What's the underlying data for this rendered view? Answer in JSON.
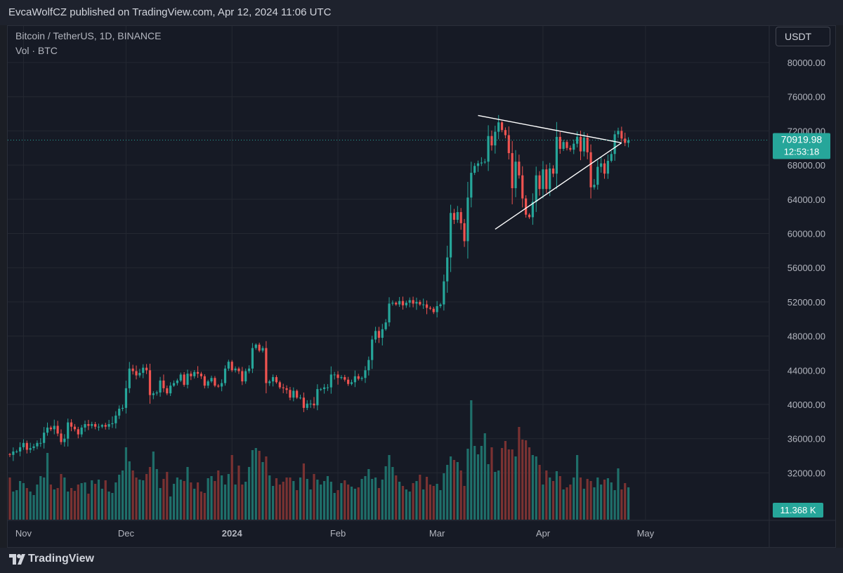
{
  "header": {
    "publish_text": "EvcaWolfCZ published on TradingView.com, Apr 12, 2024 11:06 UTC"
  },
  "chart": {
    "symbol_text": "Bitcoin / TetherUS, 1D, BINANCE",
    "volume_label": "Vol · BTC",
    "currency_button": "USDT",
    "last_price_label": "70919.98",
    "countdown_label": "12:53:18",
    "volume_value_label": "11.368 K"
  },
  "footer": {
    "brand": "TradingView",
    "brand_icon": "tradingview-logo-icon"
  },
  "colors": {
    "up": "#26a69a",
    "down": "#ef5350",
    "up_volume": "#1f6f6a",
    "down_volume": "#7a3232",
    "pattern_lines": "#ffffff",
    "price_line": "#26a69a"
  },
  "chart_data": {
    "type": "candlestick",
    "title": "Bitcoin / TetherUS, 1D, BINANCE",
    "ylim": [
      30000,
      82000
    ],
    "y_ticks": [
      "80000.00",
      "76000.00",
      "72000.00",
      "68000.00",
      "64000.00",
      "60000.00",
      "56000.00",
      "52000.00",
      "48000.00",
      "44000.00",
      "40000.00",
      "36000.00",
      "32000.00"
    ],
    "x_ticks": [
      {
        "label": "Nov",
        "date": "2023-11-01"
      },
      {
        "label": "Dec",
        "date": "2023-12-01"
      },
      {
        "label": "2024",
        "date": "2024-01-01"
      },
      {
        "label": "Feb",
        "date": "2024-02-01"
      },
      {
        "label": "Mar",
        "date": "2024-03-01"
      },
      {
        "label": "Apr",
        "date": "2024-04-01"
      },
      {
        "label": "May",
        "date": "2024-05-01"
      }
    ],
    "start_date": "2023-10-28",
    "close": [
      34100,
      34500,
      34500,
      35000,
      35500,
      34700,
      34900,
      35100,
      35500,
      35500,
      36700,
      37300,
      37100,
      37500,
      36600,
      35600,
      36000,
      37900,
      37400,
      37100,
      36500,
      37300,
      37700,
      37500,
      37700,
      37400,
      37400,
      37600,
      37400,
      37700,
      37800,
      38700,
      39500,
      39600,
      41900,
      44200,
      43900,
      43400,
      43700,
      44300,
      44000,
      41100,
      41300,
      41400,
      42800,
      41900,
      41300,
      42200,
      42500,
      42800,
      43500,
      42300,
      43600,
      43300,
      43800,
      43600,
      43300,
      42200,
      42700,
      43100,
      42200,
      42100,
      42500,
      44200,
      45000,
      44000,
      44200,
      43900,
      42700,
      43900,
      44200,
      46600,
      47000,
      46300,
      46600,
      42500,
      42700,
      43200,
      42600,
      42000,
      41900,
      41700,
      40800,
      41600,
      40800,
      40800,
      39600,
      40100,
      40100,
      39900,
      41800,
      41800,
      42000,
      42000,
      43500,
      43500,
      43100,
      43200,
      42900,
      42400,
      42600,
      43300,
      43000,
      43100,
      44000,
      45200,
      47600,
      48600,
      47800,
      48800,
      49600,
      51800,
      51900,
      51700,
      52100,
      51600,
      51900,
      52200,
      51800,
      52000,
      51700,
      51700,
      51300,
      51200,
      50800,
      51500,
      51700,
      54400,
      57200,
      62400,
      61600,
      62500,
      61200,
      59100,
      64200,
      67100,
      67900,
      68200,
      68300,
      68400,
      71400,
      70300,
      71900,
      73000,
      72100,
      71500,
      69400,
      65300,
      68400,
      66800,
      64100,
      62200,
      61900,
      63700,
      66800,
      65200,
      67500,
      65200,
      67600,
      67000,
      71300,
      69900,
      70700,
      70000,
      69800,
      70500,
      71300,
      69600,
      71200,
      69500,
      65400,
      65700,
      67800,
      68200,
      67000,
      68500,
      69300,
      71600,
      72000,
      71100,
      70600,
      70900
    ],
    "volume_index": [
      60,
      40,
      42,
      55,
      52,
      45,
      40,
      35,
      50,
      62,
      60,
      95,
      50,
      43,
      45,
      65,
      60,
      40,
      45,
      41,
      50,
      52,
      53,
      37,
      56,
      51,
      57,
      44,
      56,
      40,
      38,
      53,
      64,
      70,
      103,
      83,
      70,
      60,
      57,
      56,
      65,
      75,
      97,
      72,
      45,
      58,
      68,
      33,
      51,
      60,
      57,
      55,
      75,
      53,
      44,
      53,
      40,
      38,
      59,
      62,
      55,
      70,
      63,
      50,
      65,
      92,
      50,
      77,
      50,
      54,
      75,
      99,
      102,
      98,
      82,
      90,
      63,
      48,
      59,
      50,
      54,
      60,
      60,
      55,
      42,
      60,
      80,
      58,
      43,
      65,
      57,
      50,
      55,
      62,
      54,
      38,
      42,
      52,
      56,
      50,
      47,
      44,
      46,
      58,
      62,
      72,
      58,
      60,
      45,
      57,
      76,
      92,
      75,
      63,
      54,
      48,
      43,
      40,
      52,
      55,
      64,
      43,
      61,
      50,
      48,
      51,
      42,
      66,
      78,
      90,
      85,
      82,
      70,
      48,
      101,
      170,
      105,
      93,
      105,
      123,
      79,
      103,
      68,
      70,
      102,
      112,
      100,
      100,
      90,
      132,
      114,
      113,
      103,
      92,
      90,
      78,
      50,
      70,
      60,
      55,
      69,
      62,
      43,
      46,
      50,
      60,
      92,
      60,
      44,
      58,
      55,
      46,
      60,
      50,
      57,
      59,
      53,
      42,
      73,
      43,
      52,
      46
    ],
    "pattern": {
      "type": "symmetrical triangle",
      "upper_line": [
        {
          "date": "2024-03-13",
          "price": 73800
        },
        {
          "date": "2024-04-24",
          "price": 70600
        }
      ],
      "lower_line": [
        {
          "date": "2024-03-18",
          "price": 60500
        },
        {
          "date": "2024-04-24",
          "price": 70600
        }
      ]
    },
    "last_price": 70919.98
  }
}
